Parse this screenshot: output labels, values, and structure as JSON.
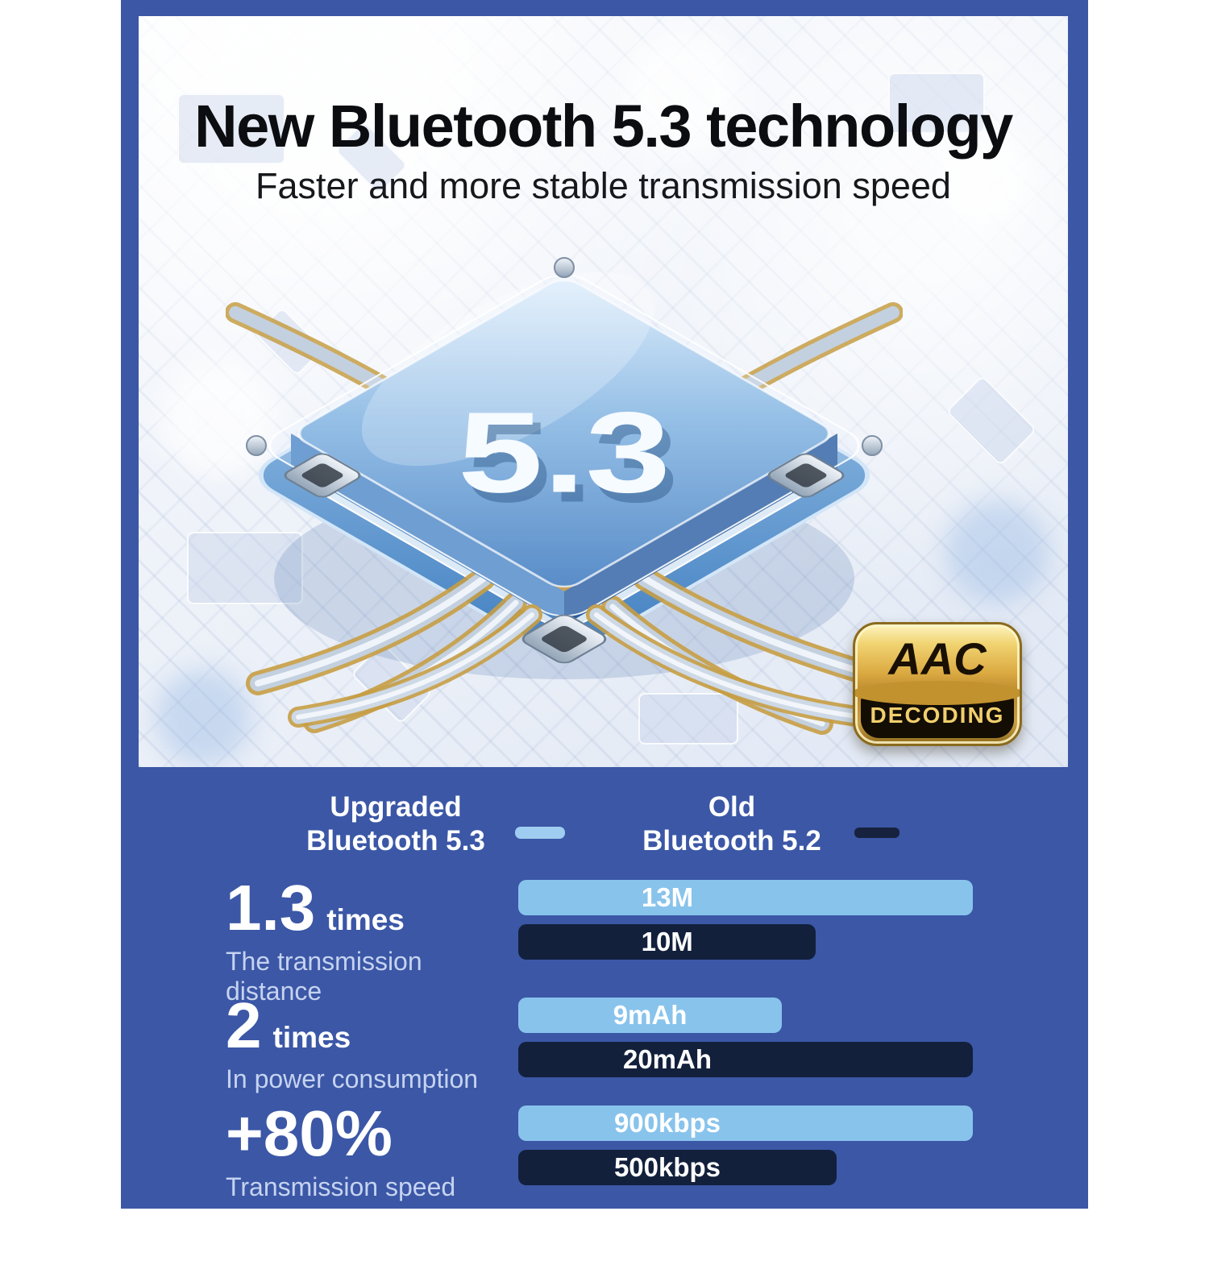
{
  "page": {
    "colors": {
      "canvas": "#ffffff",
      "panel": "#3B57A6"
    }
  },
  "hero": {
    "title": "New Bluetooth 5.3 technology",
    "subtitle": "Faster and more stable transmission speed",
    "chip_label": "5.3",
    "badge": {
      "line1": "AAC",
      "line2": "DECODING"
    }
  },
  "chart_data": {
    "type": "bar",
    "orientation": "horizontal",
    "title": "",
    "legend_position": "top",
    "grid": false,
    "colors": {
      "new_bar": "#88C3EC",
      "old_bar": "#13203C",
      "legend_new": "#9FCDF1",
      "legend_old": "#16223E"
    },
    "legend": [
      {
        "name": "Upgraded",
        "name2": "Bluetooth 5.3",
        "color": "#9FCDF1"
      },
      {
        "name": "Old",
        "name2": "Bluetooth 5.2",
        "color": "#16223E"
      }
    ],
    "rows": [
      {
        "metric": "1.3",
        "metric_suffix": "times",
        "label": "The transmission distance",
        "new": {
          "value": 13,
          "unit": "M",
          "value_label": "13M",
          "width_pct": 100
        },
        "old": {
          "value": 10,
          "unit": "M",
          "value_label": "10M",
          "width_pct": 65.5
        }
      },
      {
        "metric": "2",
        "metric_suffix": "times",
        "label": "In power consumption",
        "new": {
          "value": 9,
          "unit": "mAh",
          "value_label": "9mAh",
          "width_pct": 58
        },
        "old": {
          "value": 20,
          "unit": "mAh",
          "value_label": "20mAh",
          "width_pct": 100
        }
      },
      {
        "metric": "+80%",
        "metric_suffix": "",
        "label": "Transmission speed",
        "new": {
          "value": 900,
          "unit": "kbps",
          "value_label": "900kbps",
          "width_pct": 100
        },
        "old": {
          "value": 500,
          "unit": "kbps",
          "value_label": "500kbps",
          "width_pct": 70
        }
      }
    ]
  }
}
